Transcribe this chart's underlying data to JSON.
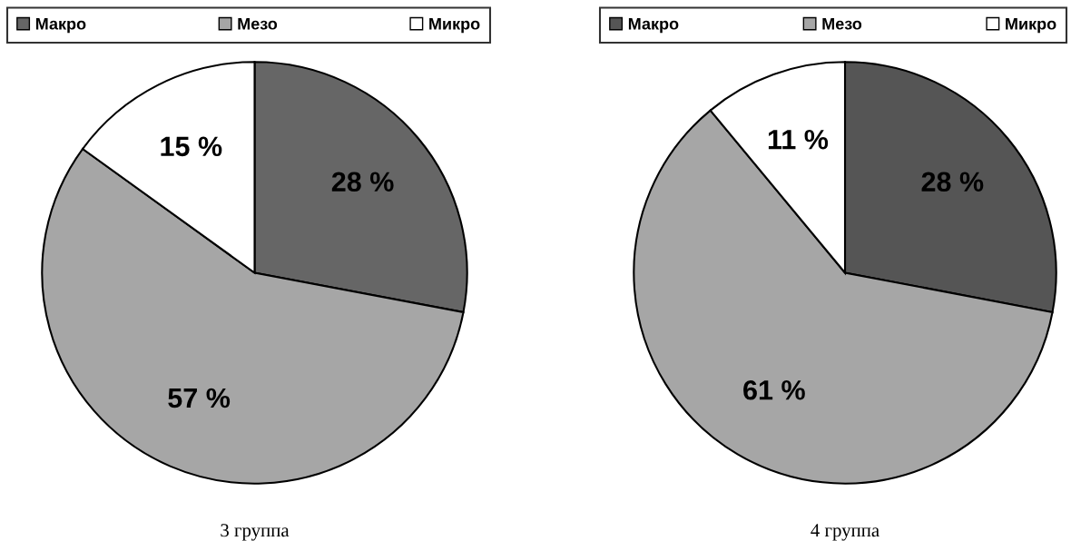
{
  "chart_data": [
    {
      "type": "pie",
      "categories": [
        "Макро",
        "Мезо",
        "Микро"
      ],
      "values": [
        28,
        57,
        15
      ],
      "colors": [
        "#666666",
        "#a6a6a6",
        "#ffffff"
      ],
      "value_labels": [
        "28 %",
        "57 %",
        "15 %"
      ],
      "xlabel": "3 группа",
      "legend": "top"
    },
    {
      "type": "pie",
      "categories": [
        "Макро",
        "Мезо",
        "Микро"
      ],
      "values": [
        28,
        61,
        11
      ],
      "colors": [
        "#555555",
        "#a6a6a6",
        "#ffffff"
      ],
      "value_labels": [
        "28 %",
        "61 %",
        "11 %"
      ],
      "xlabel": "4 группа",
      "legend": "top"
    }
  ]
}
